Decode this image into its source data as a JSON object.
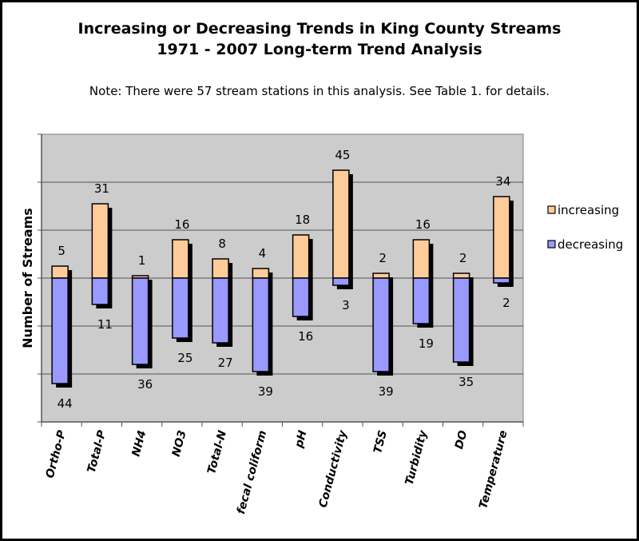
{
  "chart_data": {
    "type": "bar",
    "subtype": "stacked-up-down",
    "title": "Increasing or Decreasing Trends in King County Streams",
    "subtitle": "1971 - 2007 Long-term Trend Analysis",
    "note": "Note:  There were 57 stream stations in this analysis.  See Table 1. for details.",
    "xlabel": "",
    "ylabel": "Number of Streams",
    "ylim": [
      -60,
      60
    ],
    "ytick_step": 20,
    "grid": true,
    "legend_position": "right",
    "categories": [
      "Ortho-P",
      "Total-P",
      "NH4",
      "NO3",
      "Total-N",
      "fecal coliform",
      "pH",
      "Conductivity",
      "TSS",
      "Turbidity",
      "DO",
      "Temperature"
    ],
    "series": [
      {
        "name": "increasing",
        "color": "#FFCC99",
        "values": [
          5,
          31,
          1,
          16,
          8,
          4,
          18,
          45,
          2,
          16,
          2,
          34
        ]
      },
      {
        "name": "decreasing",
        "color": "#9999FF",
        "values": [
          44,
          11,
          36,
          25,
          27,
          39,
          16,
          3,
          39,
          19,
          35,
          2
        ]
      }
    ],
    "plot_background": "#C0C0C0"
  }
}
